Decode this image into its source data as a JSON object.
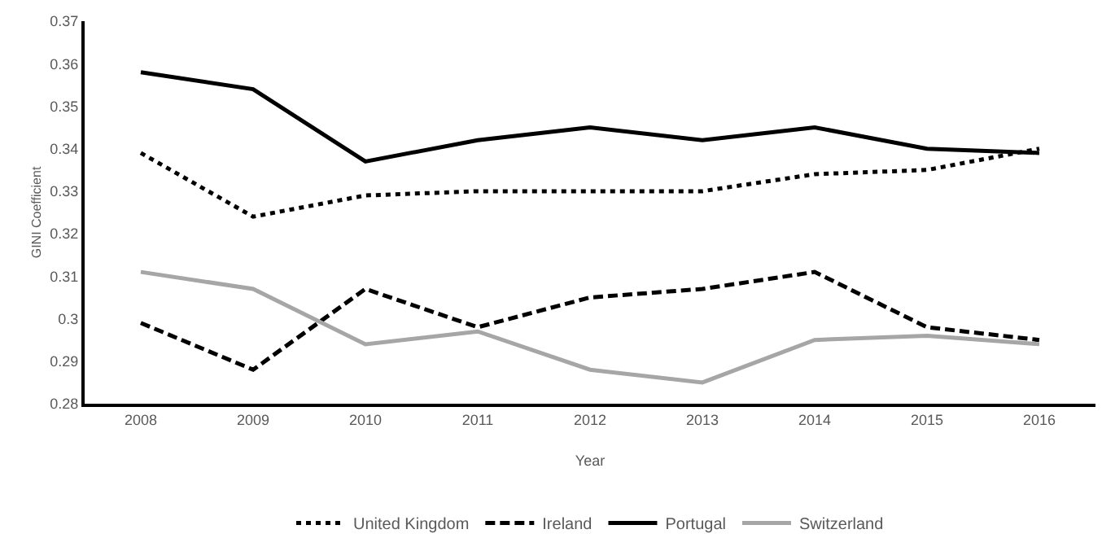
{
  "chart_data": {
    "type": "line",
    "xlabel": "Year",
    "ylabel": "GINI Coefficient",
    "categories": [
      "2008",
      "2009",
      "2010",
      "2011",
      "2012",
      "2013",
      "2014",
      "2015",
      "2016"
    ],
    "series": [
      {
        "name": "United Kingdom",
        "color": "#000000",
        "line_style": "dotted",
        "values": [
          0.339,
          0.324,
          0.329,
          0.33,
          0.33,
          0.33,
          0.334,
          0.335,
          0.34
        ]
      },
      {
        "name": "Ireland",
        "color": "#000000",
        "line_style": "dashed",
        "values": [
          0.299,
          0.288,
          0.307,
          0.298,
          0.305,
          0.307,
          0.311,
          0.298,
          0.295
        ]
      },
      {
        "name": "Portugal",
        "color": "#000000",
        "line_style": "solid",
        "values": [
          0.358,
          0.354,
          0.337,
          0.342,
          0.345,
          0.342,
          0.345,
          0.34,
          0.339
        ]
      },
      {
        "name": "Switzerland",
        "color": "#a6a6a6",
        "line_style": "solid",
        "values": [
          0.311,
          0.307,
          0.294,
          0.297,
          0.288,
          0.285,
          0.295,
          0.296,
          0.294
        ]
      }
    ],
    "ylim": [
      0.28,
      0.37
    ],
    "yticks": [
      0.28,
      0.29,
      0.3,
      0.31,
      0.32,
      0.33,
      0.34,
      0.35,
      0.36,
      0.37
    ],
    "grid": false,
    "legend": "bottom",
    "marker": "none"
  }
}
